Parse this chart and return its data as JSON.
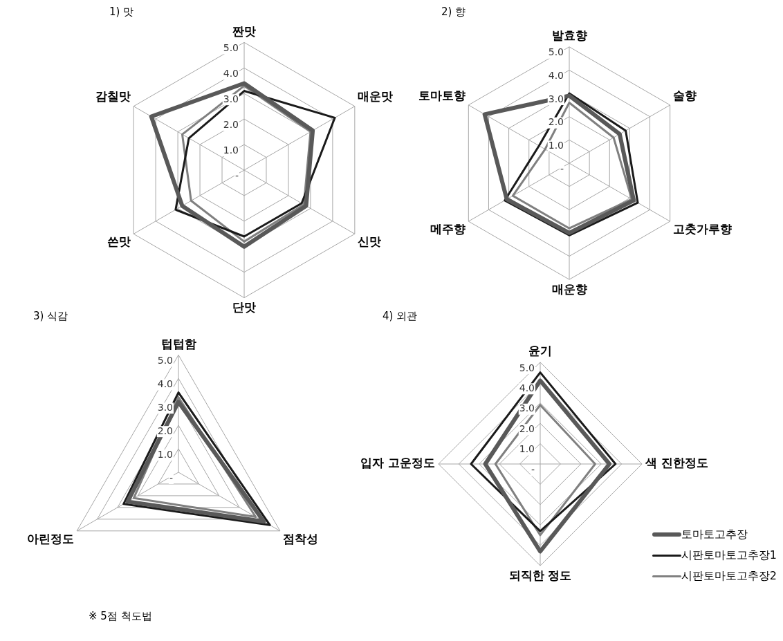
{
  "chart_data": [
    {
      "type": "radar",
      "title": "1) 맛",
      "categories": [
        "짠맛",
        "매운맛",
        "신맛",
        "단맛",
        "쓴맛",
        "감칠맛"
      ],
      "ylim": [
        0,
        5
      ],
      "yticks": [
        {
          "value": 0,
          "label": "-"
        },
        {
          "value": 1,
          "label": "1.0"
        },
        {
          "value": 2,
          "label": "2.0"
        },
        {
          "value": 3,
          "label": "3.0"
        },
        {
          "value": 4,
          "label": "4.0"
        },
        {
          "value": 5,
          "label": "5.0"
        }
      ],
      "grid": true,
      "legend": false,
      "marker": "none",
      "series": [
        {
          "color": "#595959",
          "values": [
            3.4,
            3.1,
            2.8,
            3.0,
            2.8,
            4.2
          ]
        },
        {
          "color": "#1a1a1a",
          "values": [
            3.1,
            4.1,
            2.6,
            2.6,
            3.1,
            2.5
          ]
        },
        {
          "color": "#808080",
          "values": [
            3.3,
            3.0,
            2.7,
            2.8,
            2.4,
            2.8
          ]
        }
      ]
    },
    {
      "type": "radar",
      "title": "2) 향",
      "categories": [
        "발효향",
        "술향",
        "고춧가루향",
        "매운향",
        "메주향",
        "토마토향"
      ],
      "ylim": [
        0,
        5
      ],
      "yticks": [
        {
          "value": 0,
          "label": "-"
        },
        {
          "value": 1,
          "label": "1.0"
        },
        {
          "value": 2,
          "label": "2.0"
        },
        {
          "value": 3,
          "label": "3.0"
        },
        {
          "value": 4,
          "label": "4.0"
        },
        {
          "value": 5,
          "label": "5.0"
        }
      ],
      "grid": true,
      "legend": false,
      "marker": "none",
      "series": [
        {
          "color": "#595959",
          "values": [
            2.9,
            2.5,
            3.2,
            3.0,
            3.1,
            4.2
          ]
        },
        {
          "color": "#1a1a1a",
          "values": [
            3.0,
            2.8,
            3.4,
            3.1,
            3.2,
            1.5
          ]
        },
        {
          "color": "#808080",
          "values": [
            2.6,
            2.2,
            3.1,
            2.8,
            2.8,
            1.2
          ]
        }
      ]
    },
    {
      "type": "radar",
      "title": "3) 식감",
      "categories": [
        "텁텁함",
        "점착성",
        "아린정도"
      ],
      "ylim": [
        0,
        5
      ],
      "yticks": [
        {
          "value": 0,
          "label": "-"
        },
        {
          "value": 1,
          "label": "1.0"
        },
        {
          "value": 2,
          "label": "2.0"
        },
        {
          "value": 3,
          "label": "3.0"
        },
        {
          "value": 4,
          "label": "4.0"
        },
        {
          "value": 5,
          "label": "5.0"
        }
      ],
      "grid": true,
      "legend": false,
      "marker": "none",
      "series": [
        {
          "color": "#595959",
          "values": [
            3.0,
            4.2,
            2.5
          ]
        },
        {
          "color": "#1a1a1a",
          "values": [
            3.4,
            4.5,
            2.7
          ]
        },
        {
          "color": "#808080",
          "values": [
            3.2,
            3.8,
            2.2
          ]
        }
      ]
    },
    {
      "type": "radar",
      "title": "4) 외관",
      "categories": [
        "윤기",
        "색 진한정도",
        "되직한 정도",
        "입자 고운정도"
      ],
      "ylim": [
        0,
        5
      ],
      "yticks": [
        {
          "value": 0,
          "label": "-"
        },
        {
          "value": 1,
          "label": "1.0"
        },
        {
          "value": 2,
          "label": "2.0"
        },
        {
          "value": 3,
          "label": "3.0"
        },
        {
          "value": 4,
          "label": "4.0"
        },
        {
          "value": 5,
          "label": "5.0"
        }
      ],
      "grid": true,
      "legend": "bottom right",
      "marker": "none",
      "annotations": [
        "※ 5점 척도법"
      ],
      "series": [
        {
          "name": "토마토고추장",
          "color": "#595959",
          "values": [
            4.1,
            3.4,
            4.3,
            2.7
          ]
        },
        {
          "name": "시판토마토고추장1",
          "color": "#1a1a1a",
          "values": [
            4.5,
            3.7,
            3.3,
            3.4
          ]
        },
        {
          "name": "시판토마토고추장2",
          "color": "#808080",
          "values": [
            2.9,
            2.7,
            3.5,
            2.2
          ]
        }
      ]
    }
  ]
}
